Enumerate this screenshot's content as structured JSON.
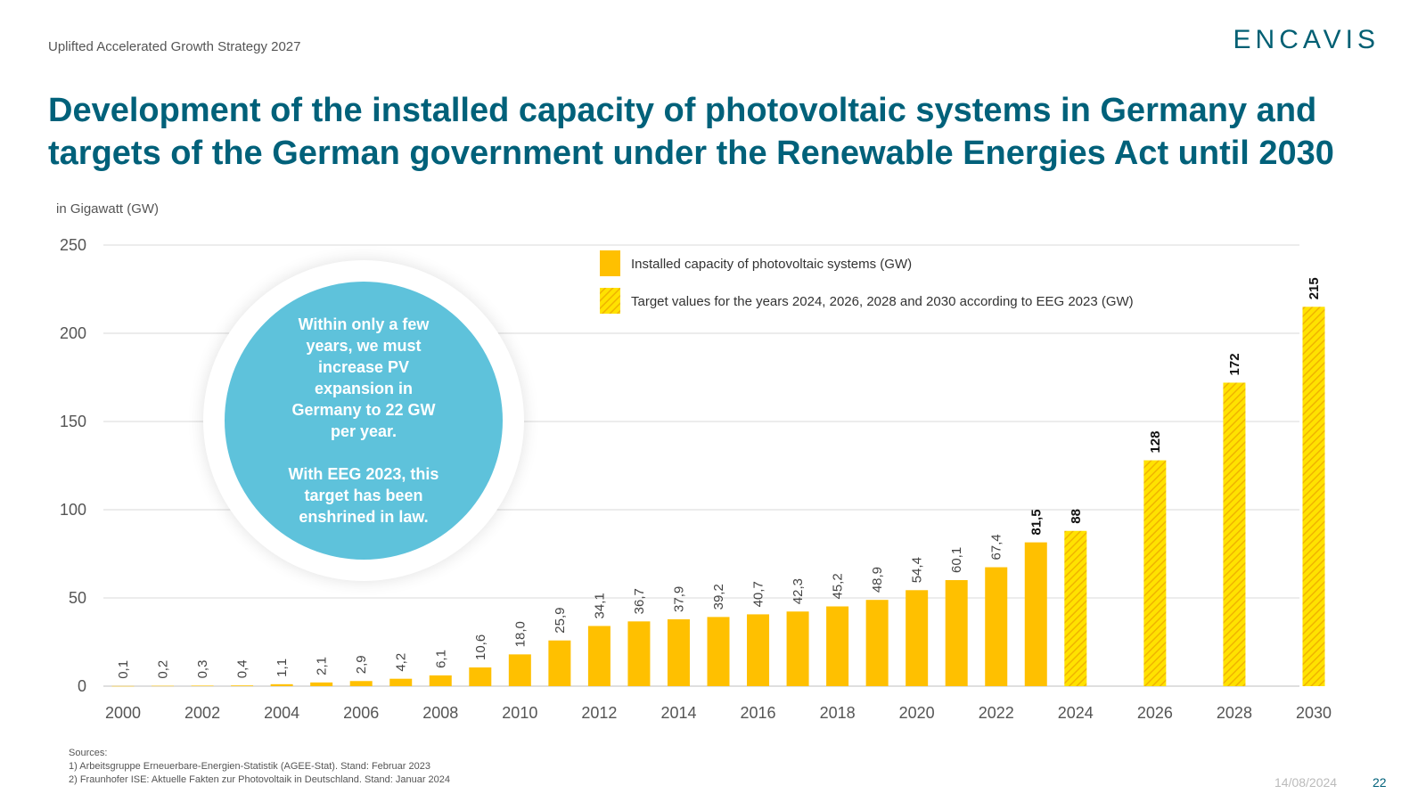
{
  "header": {
    "subtitle": "Uplifted Accelerated Growth Strategy 2027",
    "logo": "ENCAVIS",
    "title": "Development of the installed capacity of photovoltaic systems in Germany and targets of the German government under the Renewable Energies Act until 2030"
  },
  "callout": {
    "line1": "Within only a few years, we must increase PV expansion in Germany to 22 GW per year.",
    "line2": "With EEG 2023, this target has been enshrined in law."
  },
  "sources": {
    "label": "Sources:",
    "items": [
      "1) Arbeitsgruppe Erneuerbare-Energien-Statistik (AGEE-Stat). Stand: Februar 2023",
      "2) Fraunhofer ISE: Aktuelle Fakten zur Photovoltaik in Deutschland. Stand: Januar 2024"
    ]
  },
  "footer": {
    "date": "14/08/2024",
    "page": "22"
  },
  "colors": {
    "accent": "#00617a",
    "bar": "#ffc000",
    "hatch": "#ffe200",
    "circle": "#5ec2db"
  },
  "chart_data": {
    "type": "bar",
    "unit_label": "in Gigawatt (GW)",
    "ylim": [
      0,
      250
    ],
    "yticks": [
      0,
      50,
      100,
      150,
      200,
      250
    ],
    "grid": true,
    "legend": [
      "Installed capacity of photovoltaic systems (GW)",
      "Target values for the years 2024, 2026, 2028 and 2030 according to EEG 2023 (GW)"
    ],
    "xtick_labels": [
      "2000",
      "2002",
      "2004",
      "2006",
      "2008",
      "2010",
      "2012",
      "2014",
      "2016",
      "2018",
      "2020",
      "2022",
      "2024",
      "2026",
      "2028",
      "2030"
    ],
    "installed": {
      "name": "Installed capacity of photovoltaic systems (GW)",
      "years": [
        2000,
        2001,
        2002,
        2003,
        2004,
        2005,
        2006,
        2007,
        2008,
        2009,
        2010,
        2011,
        2012,
        2013,
        2014,
        2015,
        2016,
        2017,
        2018,
        2019,
        2020,
        2021,
        2022,
        2023
      ],
      "values": [
        0.1,
        0.2,
        0.3,
        0.4,
        1.1,
        2.1,
        2.9,
        4.2,
        6.1,
        10.6,
        18.0,
        25.9,
        34.1,
        36.7,
        37.9,
        39.2,
        40.7,
        42.3,
        45.2,
        48.9,
        54.4,
        60.1,
        67.4,
        81.5
      ],
      "labels": [
        "0,1",
        "0,2",
        "0,3",
        "0,4",
        "1,1",
        "2,1",
        "2,9",
        "4,2",
        "6,1",
        "10,6",
        "18,0",
        "25,9",
        "34,1",
        "36,7",
        "37,9",
        "39,2",
        "40,7",
        "42,3",
        "45,2",
        "48,9",
        "54,4",
        "60,1",
        "67,4",
        "81,5"
      ]
    },
    "targets": {
      "name": "Target values for the years 2024, 2026, 2028 and 2030 according to EEG 2023 (GW)",
      "years": [
        2024,
        2026,
        2028,
        2030
      ],
      "values": [
        88,
        128,
        172,
        215
      ],
      "labels": [
        "88",
        "128",
        "172",
        "215"
      ]
    }
  }
}
